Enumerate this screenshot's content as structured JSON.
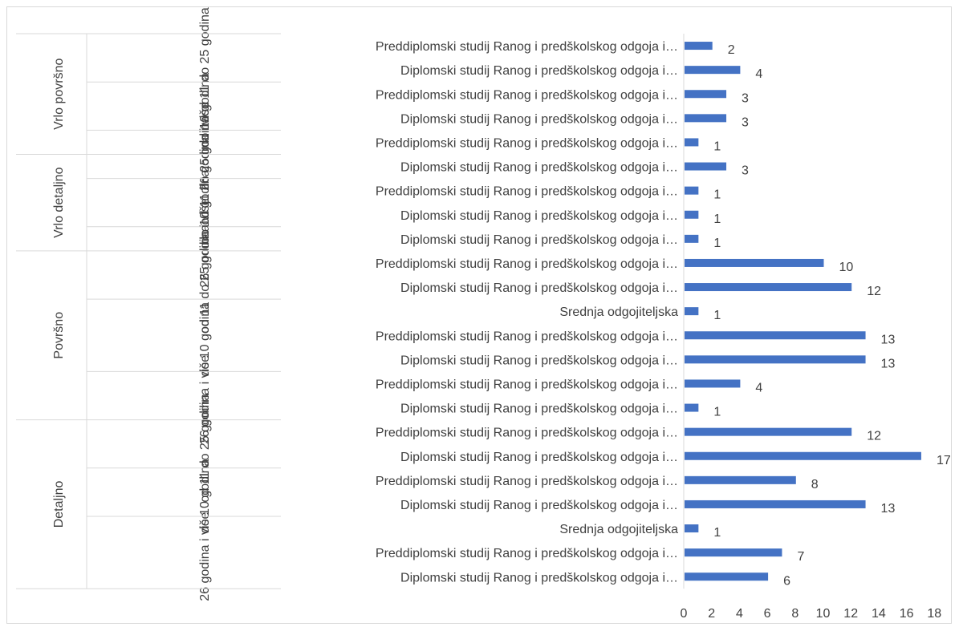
{
  "chart_data": {
    "type": "bar",
    "orientation": "horizontal",
    "bar_color": "#4472c4",
    "xlim": [
      0,
      18
    ],
    "x_ticks": [
      "0",
      "2",
      "4",
      "6",
      "8",
      "10",
      "12",
      "14",
      "16",
      "18"
    ],
    "grid": false,
    "legend": "none",
    "groups": [
      {
        "label": "Vrlo površno",
        "subgroups": [
          {
            "label": "od 11 do 25 godina",
            "items": [
              {
                "category": "Preddiplomski studij Ranog i predškolskog odgoja i…",
                "value": 2
              },
              {
                "category": "Diplomski studij Ranog i predškolskog odgoja i…",
                "value": 4
              }
            ]
          },
          {
            "label": "do 10 godina",
            "items": [
              {
                "category": "Preddiplomski studij Ranog i predškolskog odgoja i…",
                "value": 3
              },
              {
                "category": "Diplomski studij Ranog i predškolskog odgoja i…",
                "value": 3
              }
            ]
          },
          {
            "label": "26 godina i više",
            "items": [
              {
                "category": "Preddiplomski studij Ranog i predškolskog odgoja i…",
                "value": 1
              }
            ]
          }
        ]
      },
      {
        "label": "Vrlo detaljno",
        "subgroups": [
          {
            "label": "od 11 do 25 godina",
            "items": [
              {
                "category": "Diplomski studij Ranog i predškolskog odgoja i…",
                "value": 3
              }
            ]
          },
          {
            "label": "do 10 godina",
            "items": [
              {
                "category": "Preddiplomski studij Ranog i predškolskog odgoja i…",
                "value": 1
              },
              {
                "category": "Diplomski studij Ranog i predškolskog odgoja i…",
                "value": 1
              }
            ]
          },
          {
            "label": "26 godina i više",
            "items": [
              {
                "category": "Diplomski studij Ranog i predškolskog odgoja i…",
                "value": 1
              }
            ]
          }
        ]
      },
      {
        "label": "Površno",
        "subgroups": [
          {
            "label": "od 11 do 25 godina",
            "items": [
              {
                "category": "Preddiplomski studij Ranog i predškolskog odgoja i…",
                "value": 10
              },
              {
                "category": "Diplomski studij Ranog i predškolskog odgoja i…",
                "value": 12
              }
            ]
          },
          {
            "label": "do 10 godina",
            "items": [
              {
                "category": "Srednja odgojiteljska",
                "value": 1
              },
              {
                "category": "Preddiplomski studij Ranog i predškolskog odgoja i…",
                "value": 13
              },
              {
                "category": "Diplomski studij Ranog i predškolskog odgoja i…",
                "value": 13
              }
            ]
          },
          {
            "label": "26 godina i više",
            "items": [
              {
                "category": "Preddiplomski studij Ranog i predškolskog odgoja i…",
                "value": 4
              },
              {
                "category": "Diplomski studij Ranog i predškolskog odgoja i…",
                "value": 1
              }
            ]
          }
        ]
      },
      {
        "label": "Detaljno",
        "subgroups": [
          {
            "label": "od 11 do 25 godina",
            "items": [
              {
                "category": "Preddiplomski studij Ranog i predškolskog odgoja i…",
                "value": 12
              },
              {
                "category": "Diplomski studij Ranog i predškolskog odgoja i…",
                "value": 17
              }
            ]
          },
          {
            "label": "do 10 godina",
            "items": [
              {
                "category": "Preddiplomski studij Ranog i predškolskog odgoja i…",
                "value": 8
              },
              {
                "category": "Diplomski studij Ranog i predškolskog odgoja i…",
                "value": 13
              }
            ]
          },
          {
            "label": "26 godina i više",
            "items": [
              {
                "category": "Srednja odgojiteljska",
                "value": 1
              },
              {
                "category": "Preddiplomski studij Ranog i predškolskog odgoja i…",
                "value": 7
              },
              {
                "category": "Diplomski studij Ranog i predškolskog odgoja i…",
                "value": 6
              }
            ]
          }
        ]
      }
    ]
  }
}
